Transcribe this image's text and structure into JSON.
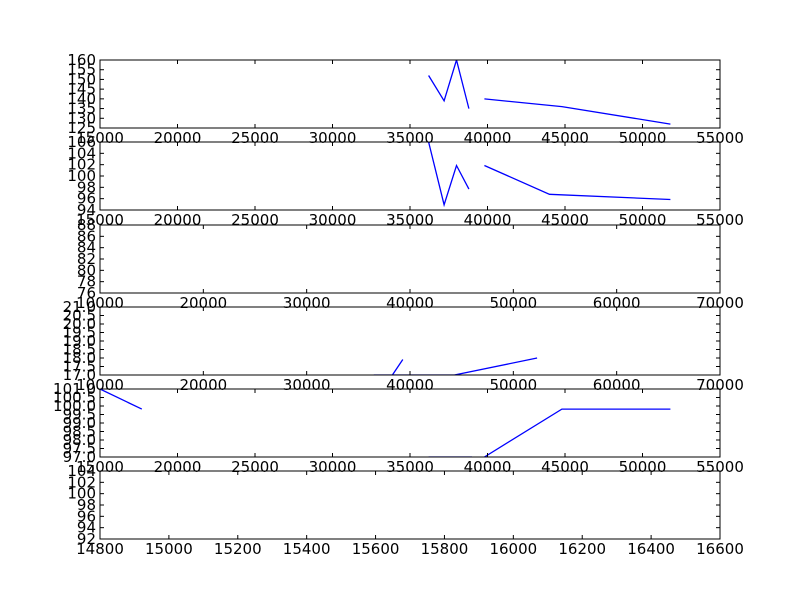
{
  "colors": {
    "background": "#ffffff",
    "line": "#0000ff",
    "axes": "#000000"
  },
  "chart_data": [
    {
      "type": "line",
      "xlim": [
        15000,
        55000
      ],
      "ylim": [
        125,
        160
      ],
      "xticks": [
        "15000",
        "20000",
        "25000",
        "30000",
        "35000",
        "40000",
        "45000",
        "50000",
        "55000"
      ],
      "yticks": [
        "125",
        "130",
        "135",
        "140",
        "145",
        "150",
        "155",
        "160"
      ],
      "segments": [
        {
          "x": [
            36200,
            37200,
            38000,
            38800
          ],
          "y": [
            152,
            139,
            160,
            135
          ]
        },
        {
          "x": [
            39800,
            44800,
            51800
          ],
          "y": [
            140,
            136,
            127
          ]
        }
      ]
    },
    {
      "type": "line",
      "xlim": [
        15000,
        55000
      ],
      "ylim": [
        93,
        106
      ],
      "xticks": [
        "15000",
        "20000",
        "25000",
        "30000",
        "35000",
        "40000",
        "45000",
        "50000",
        "55000"
      ],
      "yticks": [
        "94",
        "96",
        "98",
        "100",
        "102",
        "104",
        "106"
      ],
      "segments": [
        {
          "x": [
            36200,
            37200,
            38000,
            38800
          ],
          "y": [
            106,
            94,
            101.5,
            97
          ]
        },
        {
          "x": [
            39800,
            44000,
            51800
          ],
          "y": [
            101.5,
            96,
            95
          ]
        }
      ]
    },
    {
      "type": "line",
      "xlim": [
        10000,
        70000
      ],
      "ylim": [
        75,
        88
      ],
      "xticks": [
        "10000",
        "20000",
        "30000",
        "40000",
        "50000",
        "60000",
        "70000"
      ],
      "yticks": [
        "76",
        "78",
        "80",
        "82",
        "84",
        "86",
        "88"
      ],
      "segments": []
    },
    {
      "type": "line",
      "xlim": [
        10000,
        70000
      ],
      "ylim": [
        16.6,
        21
      ],
      "xticks": [
        "10000",
        "20000",
        "30000",
        "40000",
        "50000",
        "60000",
        "70000"
      ],
      "yticks": [
        "17.0",
        "17.5",
        "18.0",
        "18.5",
        "19.0",
        "19.5",
        "20.0",
        "20.5",
        "21.0"
      ],
      "segments": [
        {
          "x": [
            36500,
            38300,
            39300
          ],
          "y": [
            16.6,
            16.6,
            17.6
          ]
        },
        {
          "x": [
            38300,
            44300,
            52300
          ],
          "y": [
            16.6,
            16.6,
            17.7
          ]
        }
      ]
    },
    {
      "type": "line",
      "xlim": [
        15000,
        55000
      ],
      "ylim": [
        96.6,
        101.0
      ],
      "xticks": [
        "15000",
        "20000",
        "25000",
        "30000",
        "35000",
        "40000",
        "45000",
        "50000",
        "55000"
      ],
      "yticks": [
        "97.0",
        "97.5",
        "98.0",
        "98.5",
        "99.0",
        "99.5",
        "100.0",
        "100.5",
        "101.0"
      ],
      "segments": [
        {
          "x": [
            15000,
            17700
          ],
          "y": [
            101.0,
            99.7
          ]
        },
        {
          "x": [
            36200,
            39000
          ],
          "y": [
            96.6,
            96.6
          ]
        },
        {
          "x": [
            39800,
            44800,
            51800
          ],
          "y": [
            96.6,
            99.7,
            99.7
          ]
        }
      ]
    },
    {
      "type": "line",
      "xlim": [
        14800,
        16600
      ],
      "ylim": [
        92,
        104
      ],
      "xticks": [
        "14800",
        "15000",
        "15200",
        "15400",
        "15600",
        "15800",
        "16000",
        "16200",
        "16400",
        "16600"
      ],
      "yticks": [
        "92",
        "94",
        "96",
        "98",
        "100",
        "102",
        "104"
      ],
      "segments": []
    }
  ]
}
